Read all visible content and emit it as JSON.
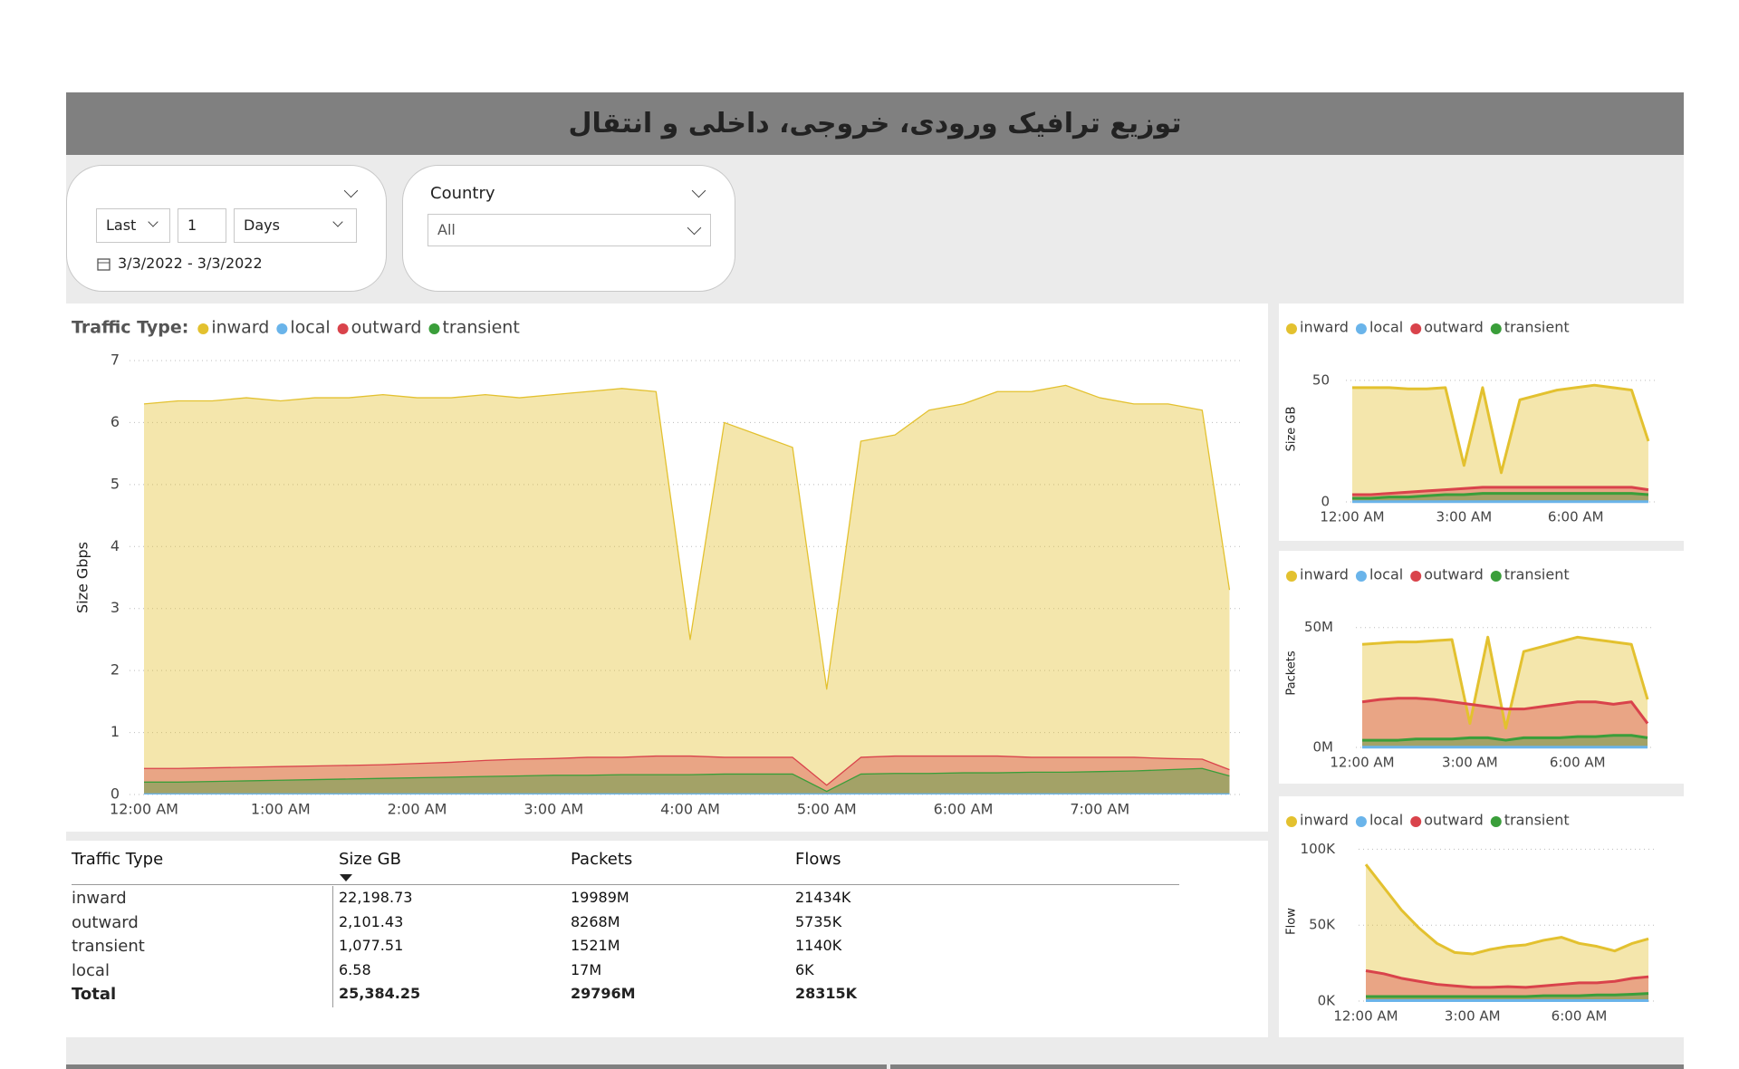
{
  "header": {
    "title": "توزیع ترافیک ورودی، خروجی، داخلی و انتقال"
  },
  "filters": {
    "date": {
      "mode": "Last",
      "count": 1,
      "unit": "Days",
      "range": "3/3/2022 - 3/3/2022"
    },
    "country": {
      "label": "Country",
      "value": "All"
    }
  },
  "chart_data": [
    {
      "type": "area",
      "legend_title": "Traffic Type:",
      "y_label": "Size Gbps",
      "grid": true,
      "x": [
        0,
        0.25,
        0.5,
        0.75,
        1,
        1.25,
        1.5,
        1.75,
        2,
        2.25,
        2.5,
        2.75,
        3,
        3.25,
        3.5,
        3.75,
        4,
        4.25,
        4.5,
        4.75,
        5,
        5.25,
        5.5,
        5.75,
        6,
        6.25,
        6.5,
        6.75,
        7,
        7.25,
        7.5,
        7.75,
        7.95
      ],
      "xlim": [
        0,
        8
      ],
      "xticks": [
        {
          "value": 0,
          "label": "12:00 AM"
        },
        {
          "value": 1,
          "label": "1:00 AM"
        },
        {
          "value": 2,
          "label": "2:00 AM"
        },
        {
          "value": 3,
          "label": "3:00 AM"
        },
        {
          "value": 4,
          "label": "4:00 AM"
        },
        {
          "value": 5,
          "label": "5:00 AM"
        },
        {
          "value": 6,
          "label": "6:00 AM"
        },
        {
          "value": 7,
          "label": "7:00 AM"
        }
      ],
      "ylim": [
        0,
        7
      ],
      "yticks": [
        0,
        1,
        2,
        3,
        4,
        5,
        6,
        7
      ],
      "series": [
        {
          "name": "inward",
          "color": "#e3c12f",
          "values": [
            6.3,
            6.35,
            6.35,
            6.4,
            6.35,
            6.4,
            6.4,
            6.45,
            6.4,
            6.4,
            6.45,
            6.4,
            6.45,
            6.5,
            6.55,
            6.5,
            2.5,
            6.0,
            5.8,
            5.6,
            1.7,
            5.7,
            5.8,
            6.2,
            6.3,
            6.5,
            6.5,
            6.6,
            6.4,
            6.3,
            6.3,
            6.2,
            3.3
          ]
        },
        {
          "name": "local",
          "color": "#6ab4ea",
          "values": [
            0.01,
            0.01,
            0.01,
            0.01,
            0.01,
            0.01,
            0.01,
            0.01,
            0.01,
            0.01,
            0.01,
            0.01,
            0.01,
            0.01,
            0.01,
            0.01,
            0.01,
            0.01,
            0.01,
            0.01,
            0.01,
            0.01,
            0.01,
            0.01,
            0.01,
            0.01,
            0.01,
            0.01,
            0.01,
            0.01,
            0.01,
            0.01,
            0.01
          ]
        },
        {
          "name": "outward",
          "color": "#d9434b",
          "values": [
            0.42,
            0.42,
            0.43,
            0.44,
            0.45,
            0.46,
            0.47,
            0.48,
            0.5,
            0.52,
            0.55,
            0.57,
            0.58,
            0.6,
            0.6,
            0.62,
            0.62,
            0.6,
            0.6,
            0.6,
            0.15,
            0.6,
            0.62,
            0.62,
            0.62,
            0.62,
            0.6,
            0.6,
            0.6,
            0.6,
            0.58,
            0.57,
            0.4
          ]
        },
        {
          "name": "transient",
          "color": "#3a9e3a",
          "values": [
            0.2,
            0.2,
            0.21,
            0.22,
            0.23,
            0.24,
            0.25,
            0.26,
            0.27,
            0.28,
            0.29,
            0.3,
            0.31,
            0.31,
            0.32,
            0.32,
            0.32,
            0.33,
            0.33,
            0.33,
            0.05,
            0.33,
            0.34,
            0.34,
            0.35,
            0.35,
            0.36,
            0.36,
            0.37,
            0.38,
            0.4,
            0.42,
            0.3
          ]
        }
      ]
    },
    {
      "type": "area",
      "y_label": "Size GB",
      "grid": true,
      "x": [
        0,
        0.5,
        1,
        1.5,
        2,
        2.5,
        3,
        3.5,
        4,
        4.5,
        5,
        5.5,
        6,
        6.5,
        7,
        7.5,
        7.95
      ],
      "xlim": [
        0,
        8
      ],
      "xticks": [
        {
          "value": 0,
          "label": "12:00 AM"
        },
        {
          "value": 3,
          "label": "3:00 AM"
        },
        {
          "value": 6,
          "label": "6:00 AM"
        }
      ],
      "ylim": [
        0,
        60
      ],
      "yticks": [
        0,
        50
      ],
      "series": [
        {
          "name": "inward",
          "color": "#e3c12f",
          "values": [
            47,
            47,
            47,
            46.5,
            46.5,
            47,
            15,
            47,
            12,
            42,
            44,
            46,
            47,
            48,
            47,
            46,
            25
          ]
        },
        {
          "name": "local",
          "color": "#6ab4ea",
          "values": [
            0.1,
            0.1,
            0.1,
            0.1,
            0.1,
            0.1,
            0.1,
            0.1,
            0.1,
            0.1,
            0.1,
            0.1,
            0.1,
            0.1,
            0.1,
            0.1,
            0.1
          ]
        },
        {
          "name": "outward",
          "color": "#d9434b",
          "values": [
            3,
            3,
            3.5,
            4,
            4.5,
            5,
            5.5,
            6,
            6,
            6,
            6,
            6,
            6,
            6,
            6,
            6,
            5
          ]
        },
        {
          "name": "transient",
          "color": "#3a9e3a",
          "values": [
            1.5,
            1.5,
            2,
            2,
            2.5,
            3,
            3,
            3.5,
            3.5,
            3.5,
            3.5,
            3.5,
            3.5,
            3.5,
            3.5,
            3.5,
            3
          ]
        }
      ]
    },
    {
      "type": "area",
      "y_label": "Packets",
      "grid": true,
      "x": [
        0,
        0.5,
        1,
        1.5,
        2,
        2.5,
        3,
        3.5,
        4,
        4.5,
        5,
        5.5,
        6,
        6.5,
        7,
        7.5,
        7.95
      ],
      "xlim": [
        0,
        8
      ],
      "xticks": [
        {
          "value": 0,
          "label": "12:00 AM"
        },
        {
          "value": 3,
          "label": "3:00 AM"
        },
        {
          "value": 6,
          "label": "6:00 AM"
        }
      ],
      "ylim": [
        0,
        62000000
      ],
      "yticks": [
        {
          "value": 0,
          "label": "0M"
        },
        {
          "value": 50000000,
          "label": "50M"
        }
      ],
      "series": [
        {
          "name": "inward",
          "color": "#e3c12f",
          "values": [
            43000000,
            43500000,
            44000000,
            44000000,
            44500000,
            45000000,
            10000000,
            46000000,
            8000000,
            40000000,
            42000000,
            44000000,
            46000000,
            45000000,
            44000000,
            43000000,
            20000000
          ]
        },
        {
          "name": "local",
          "color": "#6ab4ea",
          "values": [
            100000,
            100000,
            100000,
            100000,
            100000,
            100000,
            100000,
            100000,
            100000,
            100000,
            100000,
            100000,
            100000,
            100000,
            100000,
            100000,
            100000
          ]
        },
        {
          "name": "outward",
          "color": "#d9434b",
          "values": [
            19000000,
            20000000,
            20500000,
            20500000,
            20000000,
            19000000,
            18000000,
            17000000,
            16000000,
            16000000,
            17000000,
            18000000,
            19000000,
            19000000,
            18000000,
            19000000,
            10000000
          ]
        },
        {
          "name": "transient",
          "color": "#3a9e3a",
          "values": [
            3000000,
            3000000,
            3000000,
            3500000,
            3500000,
            3500000,
            4000000,
            4000000,
            3000000,
            4000000,
            4000000,
            4000000,
            4500000,
            4500000,
            5000000,
            5000000,
            4000000
          ]
        }
      ]
    },
    {
      "type": "area",
      "y_label": "Flow",
      "grid": true,
      "x": [
        0,
        0.5,
        1,
        1.5,
        2,
        2.5,
        3,
        3.5,
        4,
        4.5,
        5,
        5.5,
        6,
        6.5,
        7,
        7.5,
        7.95
      ],
      "xlim": [
        0,
        8
      ],
      "xticks": [
        {
          "value": 0,
          "label": "12:00 AM"
        },
        {
          "value": 3,
          "label": "3:00 AM"
        },
        {
          "value": 6,
          "label": "6:00 AM"
        }
      ],
      "ylim": [
        0,
        105000
      ],
      "yticks": [
        {
          "value": 0,
          "label": "0K"
        },
        {
          "value": 50000,
          "label": "50K"
        },
        {
          "value": 100000,
          "label": "100K"
        }
      ],
      "series": [
        {
          "name": "inward",
          "color": "#e3c12f",
          "values": [
            90000,
            75000,
            60000,
            48000,
            38000,
            32000,
            31000,
            34000,
            36000,
            37000,
            40000,
            42000,
            38000,
            36000,
            33000,
            38000,
            41000
          ]
        },
        {
          "name": "local",
          "color": "#6ab4ea",
          "values": [
            300,
            300,
            300,
            300,
            300,
            300,
            300,
            300,
            300,
            300,
            300,
            300,
            300,
            300,
            300,
            300,
            300
          ]
        },
        {
          "name": "outward",
          "color": "#d9434b",
          "values": [
            20000,
            18000,
            15000,
            13000,
            11000,
            10000,
            9000,
            9000,
            9500,
            9000,
            10000,
            11000,
            12000,
            12000,
            13000,
            15000,
            16000
          ]
        },
        {
          "name": "transient",
          "color": "#3a9e3a",
          "values": [
            3000,
            3000,
            3000,
            3000,
            3000,
            3000,
            3000,
            3000,
            3000,
            3000,
            3500,
            3500,
            3500,
            4000,
            4000,
            4500,
            5000
          ]
        }
      ]
    }
  ],
  "table": {
    "header": [
      "Traffic Type",
      "Size GB",
      "Packets",
      "Flows"
    ],
    "rows": [
      [
        "inward",
        "22,198.73",
        "19989M",
        "21434K"
      ],
      [
        "outward",
        "2,101.43",
        "8268M",
        "5735K"
      ],
      [
        "transient",
        "1,077.51",
        "1521M",
        "1140K"
      ],
      [
        "local",
        "6.58",
        "17M",
        "6K"
      ]
    ],
    "total": [
      "Total",
      "25,384.25",
      "29796M",
      "28315K"
    ]
  }
}
